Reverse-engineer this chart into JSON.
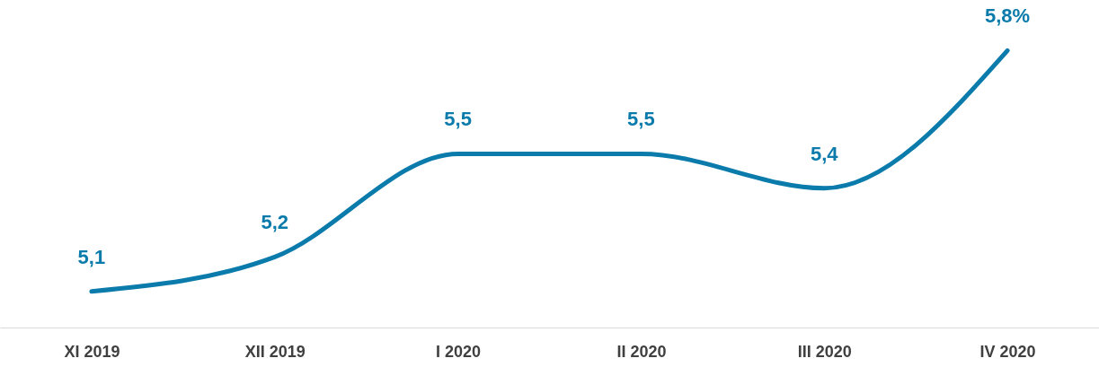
{
  "chart_data": {
    "type": "line",
    "categories": [
      "XI 2019",
      "XII 2019",
      "I 2020",
      "II 2020",
      "III 2020",
      "IV 2020"
    ],
    "series": [
      {
        "color": "#0a7bab",
        "values": [
          5.1,
          5.2,
          5.5,
          5.5,
          5.4,
          5.8
        ],
        "value_labels": [
          "5,1",
          "5,2",
          "5,5",
          "5,5",
          "5,4",
          "5,8%"
        ]
      }
    ],
    "grid": false,
    "marker": "none",
    "line_style": "solid",
    "tick_labels": "x"
  }
}
